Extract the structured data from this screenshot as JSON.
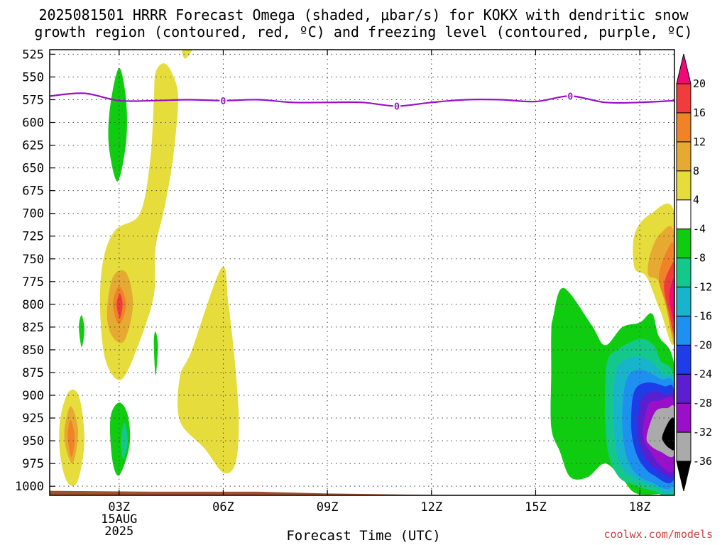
{
  "title": {
    "line1": "2025081501 HRRR Forecast Omega (shaded, μbar/s) for KOKX with dendritic snow",
    "line2": "growth region (contoured, red, ºC) and freezing level (contoured, purple, ºC)"
  },
  "credit": "coolwx.com/models",
  "colors": {
    "freezing_line": "#9a10c8",
    "ground": "#a0522d",
    "grid": "#444444"
  },
  "chart_data": {
    "type": "heatmap",
    "title": "2025081501 HRRR Forecast Omega (shaded, μbar/s) for KOKX with dendritic snow growth region (contoured, red, ºC) and freezing level (contoured, purple, ºC)",
    "xlabel": "Forecast Time (UTC)",
    "ylabel": "",
    "x_axis": {
      "unit": "forecast hour (UTC)",
      "range": [
        1,
        19
      ],
      "ticks": [
        {
          "hour": 3,
          "label": "03Z",
          "sub1": "15AUG",
          "sub2": "2025"
        },
        {
          "hour": 6,
          "label": "06Z"
        },
        {
          "hour": 9,
          "label": "09Z"
        },
        {
          "hour": 12,
          "label": "12Z"
        },
        {
          "hour": 15,
          "label": "15Z"
        },
        {
          "hour": 18,
          "label": "18Z"
        }
      ]
    },
    "y_axis": {
      "unit": "hPa",
      "range": [
        1010,
        520
      ],
      "ticks": [
        525,
        550,
        575,
        600,
        625,
        650,
        675,
        700,
        725,
        750,
        775,
        800,
        825,
        850,
        875,
        900,
        925,
        950,
        975,
        1000
      ]
    },
    "grid": true,
    "colorbar": {
      "levels": [
        "-36",
        "-32",
        "-28",
        "-24",
        "-20",
        "-16",
        "-12",
        "-8",
        "-4",
        "4",
        "8",
        "12",
        "16",
        "20"
      ],
      "colors": [
        "#000000",
        "#aaaaaa",
        "#9a10c8",
        "#5b1ed0",
        "#1e3ce8",
        "#1e90f0",
        "#18b4cc",
        "#14c88c",
        "#10cc10",
        "#ffffff",
        "#e6dc3c",
        "#e6aa32",
        "#f08228",
        "#f03c3c",
        "#f00a78"
      ]
    },
    "freezing_level": {
      "label": "0",
      "points": [
        [
          1,
          571
        ],
        [
          2,
          568
        ],
        [
          3,
          576
        ],
        [
          4,
          576
        ],
        [
          5,
          575
        ],
        [
          6,
          576
        ],
        [
          7,
          575
        ],
        [
          8,
          578
        ],
        [
          9,
          578
        ],
        [
          10,
          578
        ],
        [
          11,
          582
        ],
        [
          12,
          578
        ],
        [
          13,
          575
        ],
        [
          14,
          575
        ],
        [
          15,
          577
        ],
        [
          16,
          571
        ],
        [
          17,
          578
        ],
        [
          18,
          578
        ],
        [
          19,
          576
        ]
      ],
      "contour_labels": [
        [
          6,
          576
        ],
        [
          11,
          582
        ],
        [
          16,
          571
        ]
      ]
    },
    "regions": [
      {
        "level": "4 to 8",
        "color": "#e6dc3c",
        "points": [
          [
            4.3,
            535
          ],
          [
            4.55,
            548
          ],
          [
            4.7,
            575
          ],
          [
            4.55,
            640
          ],
          [
            4.3,
            695
          ],
          [
            4.05,
            738
          ],
          [
            4.0,
            790
          ],
          [
            3.55,
            845
          ],
          [
            3.05,
            883
          ],
          [
            2.6,
            860
          ],
          [
            2.45,
            800
          ],
          [
            2.55,
            750
          ],
          [
            2.9,
            718
          ],
          [
            3.6,
            700
          ],
          [
            3.9,
            640
          ],
          [
            4.0,
            575
          ],
          [
            4.05,
            545
          ]
        ]
      },
      {
        "level": "4 to 8",
        "color": "#e6dc3c",
        "points": [
          [
            4.82,
            520
          ],
          [
            5.1,
            520
          ],
          [
            4.9,
            530
          ]
        ]
      },
      {
        "level": "4 to 8",
        "color": "#e6dc3c",
        "points": [
          [
            1.3,
            927
          ],
          [
            1.55,
            896
          ],
          [
            1.85,
            902
          ],
          [
            2.0,
            950
          ],
          [
            1.8,
            995
          ],
          [
            1.5,
            995
          ],
          [
            1.3,
            965
          ]
        ]
      },
      {
        "level": "4 to 8",
        "color": "#e6dc3c",
        "points": [
          [
            5.95,
            760
          ],
          [
            6.15,
            800
          ],
          [
            6.35,
            870
          ],
          [
            6.45,
            930
          ],
          [
            6.35,
            975
          ],
          [
            6.0,
            985
          ],
          [
            5.45,
            958
          ],
          [
            4.75,
            928
          ],
          [
            4.75,
            880
          ],
          [
            5.1,
            850
          ]
        ]
      },
      {
        "level": "4 to 8",
        "color": "#e6dc3c",
        "points": [
          [
            17.85,
            723
          ],
          [
            18.3,
            701
          ],
          [
            19.0,
            700
          ],
          [
            19.0,
            840
          ],
          [
            18.6,
            808
          ],
          [
            18.2,
            770
          ],
          [
            17.85,
            760
          ]
        ]
      },
      {
        "level": "8 to 12",
        "color": "#e6aa32",
        "points": [
          [
            2.65,
            810
          ],
          [
            2.82,
            770
          ],
          [
            3.2,
            765
          ],
          [
            3.4,
            800
          ],
          [
            3.15,
            840
          ],
          [
            2.8,
            835
          ]
        ]
      },
      {
        "level": "8 to 12",
        "color": "#e6aa32",
        "points": [
          [
            1.42,
            945
          ],
          [
            1.6,
            912
          ],
          [
            1.82,
            940
          ],
          [
            1.65,
            975
          ]
        ]
      },
      {
        "level": "8 to 12",
        "color": "#e6aa32",
        "points": [
          [
            18.3,
            745
          ],
          [
            18.6,
            722
          ],
          [
            19.0,
            724
          ],
          [
            19.0,
            840
          ],
          [
            18.8,
            810
          ],
          [
            18.55,
            775
          ],
          [
            18.25,
            768
          ]
        ]
      },
      {
        "level": "12 to 16",
        "color": "#f08228",
        "points": [
          [
            2.82,
            800
          ],
          [
            3.0,
            780
          ],
          [
            3.2,
            800
          ],
          [
            3.0,
            822
          ]
        ]
      },
      {
        "level": "12 to 16",
        "color": "#f08228",
        "points": [
          [
            1.52,
            946
          ],
          [
            1.6,
            927
          ],
          [
            1.72,
            946
          ],
          [
            1.63,
            968
          ]
        ]
      },
      {
        "level": "12 to 16",
        "color": "#f08228",
        "points": [
          [
            18.55,
            770
          ],
          [
            18.8,
            740
          ],
          [
            19.0,
            740
          ],
          [
            19.0,
            835
          ],
          [
            18.75,
            800
          ]
        ]
      },
      {
        "level": "16 to 20",
        "color": "#f03c3c",
        "points": [
          [
            2.93,
            800
          ],
          [
            3.02,
            788
          ],
          [
            3.1,
            800
          ],
          [
            3.02,
            815
          ]
        ]
      },
      {
        "level": "16 to 20",
        "color": "#f03c3c",
        "points": [
          [
            18.7,
            780
          ],
          [
            18.9,
            758
          ],
          [
            19.0,
            760
          ],
          [
            19.0,
            830
          ],
          [
            18.85,
            810
          ]
        ]
      },
      {
        "level": "> 20",
        "color": "#f00a78",
        "points": [
          [
            18.85,
            790
          ],
          [
            19.0,
            772
          ],
          [
            19.0,
            820
          ],
          [
            18.95,
            815
          ]
        ]
      },
      {
        "level": "-8 to -4",
        "color": "#10cc10",
        "points": [
          [
            2.7,
            624
          ],
          [
            2.75,
            580
          ],
          [
            3.0,
            540
          ],
          [
            3.2,
            575
          ],
          [
            3.2,
            622
          ],
          [
            2.95,
            665
          ]
        ]
      },
      {
        "level": "-8 to -4",
        "color": "#10cc10",
        "points": [
          [
            1.84,
            825
          ],
          [
            1.92,
            812
          ],
          [
            2.0,
            828
          ],
          [
            1.92,
            847
          ]
        ]
      },
      {
        "level": "-8 to -4",
        "color": "#10cc10",
        "points": [
          [
            4.0,
            842
          ],
          [
            4.05,
            830
          ],
          [
            4.12,
            846
          ],
          [
            4.05,
            878
          ]
        ]
      },
      {
        "level": "-8 to -4",
        "color": "#10cc10",
        "points": [
          [
            2.75,
            925
          ],
          [
            3.0,
            908
          ],
          [
            3.25,
            922
          ],
          [
            3.3,
            955
          ],
          [
            3.0,
            988
          ],
          [
            2.8,
            970
          ]
        ]
      },
      {
        "level": "-8 to -4",
        "color": "#10cc10",
        "points": [
          [
            15.45,
            832
          ],
          [
            15.5,
            815
          ],
          [
            15.8,
            782
          ],
          [
            16.6,
            822
          ],
          [
            17.0,
            845
          ],
          [
            17.5,
            825
          ],
          [
            18.0,
            820
          ],
          [
            18.35,
            810
          ],
          [
            18.55,
            835
          ],
          [
            19.0,
            870
          ],
          [
            19.0,
            1006
          ],
          [
            18.7,
            1008
          ],
          [
            17.9,
            1008
          ],
          [
            17.5,
            992
          ],
          [
            17.0,
            975
          ],
          [
            16.5,
            990
          ],
          [
            16.0,
            990
          ],
          [
            15.7,
            962
          ],
          [
            15.45,
            935
          ],
          [
            15.45,
            875
          ]
        ]
      },
      {
        "level": "-12 to -8",
        "color": "#14c88c",
        "points": [
          [
            3.05,
            950
          ],
          [
            3.15,
            930
          ],
          [
            3.25,
            950
          ],
          [
            3.12,
            970
          ]
        ]
      },
      {
        "level": "-12 to -8",
        "color": "#14c88c",
        "points": [
          [
            17.05,
            865
          ],
          [
            17.35,
            850
          ],
          [
            18.0,
            838
          ],
          [
            18.4,
            845
          ],
          [
            18.6,
            862
          ],
          [
            19.0,
            885
          ],
          [
            19.0,
            1005
          ],
          [
            18.4,
            1005
          ],
          [
            17.8,
            998
          ],
          [
            17.4,
            990
          ],
          [
            17.1,
            965
          ],
          [
            17.0,
            920
          ]
        ]
      },
      {
        "level": "-16 to -12",
        "color": "#18b4cc",
        "points": [
          [
            17.25,
            905
          ],
          [
            17.35,
            870
          ],
          [
            17.8,
            858
          ],
          [
            18.3,
            862
          ],
          [
            18.7,
            878
          ],
          [
            19.0,
            890
          ],
          [
            19.0,
            1000
          ],
          [
            18.4,
            1000
          ],
          [
            17.8,
            990
          ],
          [
            17.5,
            980
          ],
          [
            17.3,
            955
          ]
        ]
      },
      {
        "level": "-20 to -16",
        "color": "#1e90f0",
        "points": [
          [
            17.5,
            915
          ],
          [
            17.65,
            880
          ],
          [
            18.05,
            872
          ],
          [
            18.6,
            882
          ],
          [
            19.0,
            892
          ],
          [
            19.0,
            995
          ],
          [
            18.3,
            995
          ],
          [
            17.8,
            982
          ],
          [
            17.55,
            955
          ]
        ]
      },
      {
        "level": "-24 to -20",
        "color": "#1e3ce8",
        "points": [
          [
            17.75,
            925
          ],
          [
            17.85,
            895
          ],
          [
            18.2,
            886
          ],
          [
            18.7,
            890
          ],
          [
            19.0,
            898
          ],
          [
            19.0,
            990
          ],
          [
            18.4,
            988
          ],
          [
            18.0,
            972
          ],
          [
            17.8,
            950
          ]
        ]
      },
      {
        "level": "-28 to -24",
        "color": "#5b1ed0",
        "points": [
          [
            17.95,
            930
          ],
          [
            18.05,
            905
          ],
          [
            18.4,
            896
          ],
          [
            18.8,
            900
          ],
          [
            19.0,
            902
          ],
          [
            19.0,
            985
          ],
          [
            18.5,
            982
          ],
          [
            18.15,
            968
          ],
          [
            17.98,
            950
          ]
        ]
      },
      {
        "level": "-32 to -28",
        "color": "#9a10c8",
        "points": [
          [
            18.1,
            935
          ],
          [
            18.25,
            910
          ],
          [
            18.55,
            906
          ],
          [
            19.0,
            908
          ],
          [
            19.0,
            980
          ],
          [
            18.6,
            977
          ],
          [
            18.3,
            962
          ],
          [
            18.12,
            950
          ]
        ]
      },
      {
        "level": "-36 to -32",
        "color": "#aaaaaa",
        "points": [
          [
            18.2,
            945
          ],
          [
            18.45,
            918
          ],
          [
            18.8,
            914
          ],
          [
            19.0,
            915
          ],
          [
            19.0,
            965
          ],
          [
            18.6,
            962
          ],
          [
            18.3,
            955
          ]
        ]
      },
      {
        "level": "< -36",
        "color": "#000000",
        "points": [
          [
            18.65,
            945
          ],
          [
            18.85,
            928
          ],
          [
            19.0,
            927
          ],
          [
            19.0,
            958
          ],
          [
            18.85,
            958
          ],
          [
            18.7,
            952
          ]
        ]
      }
    ],
    "surface": {
      "points": [
        [
          1,
          1005
        ],
        [
          4,
          1006
        ],
        [
          7,
          1006
        ],
        [
          9,
          1008
        ],
        [
          11,
          1009
        ],
        [
          13,
          1010
        ],
        [
          19,
          1010
        ]
      ]
    }
  }
}
